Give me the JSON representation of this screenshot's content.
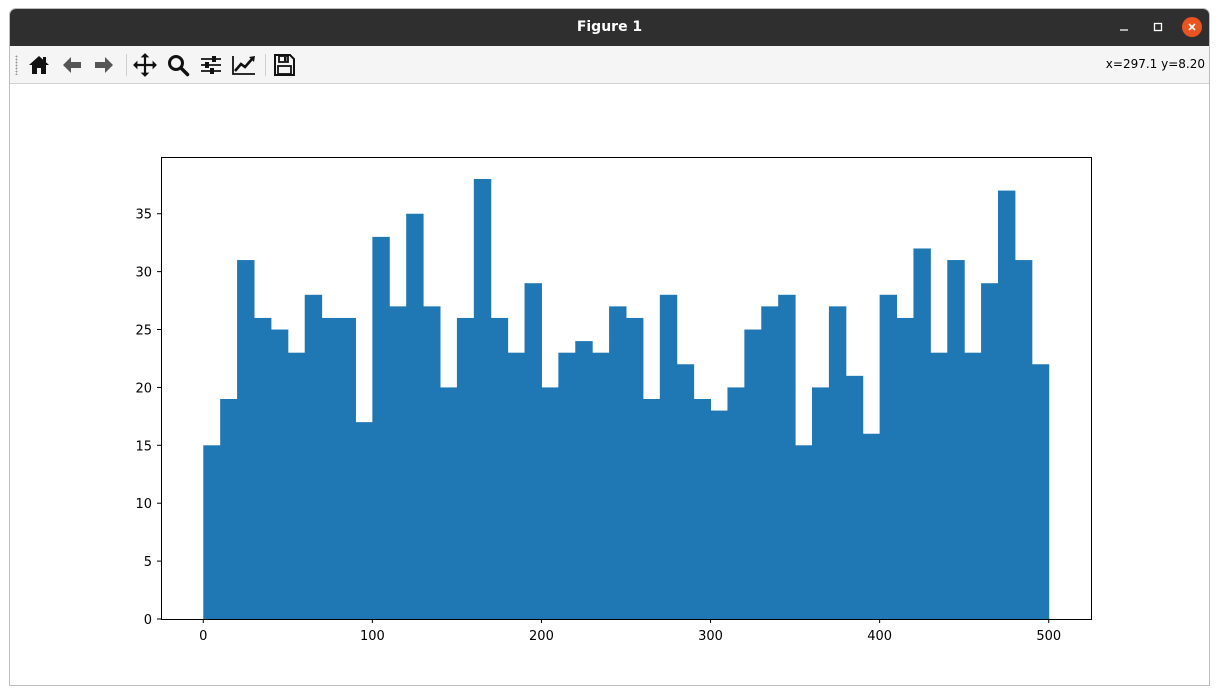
{
  "window": {
    "title": "Figure 1"
  },
  "toolbar": {
    "tools": [
      {
        "name": "home-icon",
        "tooltip": ""
      },
      {
        "name": "back-arrow-icon",
        "tooltip": ""
      },
      {
        "name": "forward-arrow-icon",
        "tooltip": ""
      },
      {
        "name": "pan-icon",
        "tooltip": ""
      },
      {
        "name": "zoom-icon",
        "tooltip": ""
      },
      {
        "name": "subplots-config-icon",
        "tooltip": ""
      },
      {
        "name": "edit-axis-icon",
        "tooltip": ""
      },
      {
        "name": "save-icon",
        "tooltip": ""
      }
    ],
    "coords": "x=297.1 y=8.20"
  },
  "colors": {
    "bar": "#1f77b4",
    "titlebar": "#2f2f2f",
    "close": "#e95420"
  },
  "chart_data": {
    "type": "bar",
    "title": "",
    "xlabel": "",
    "ylabel": "",
    "bin_start": 0,
    "bin_width": 10,
    "values": [
      15,
      19,
      31,
      26,
      25,
      23,
      28,
      26,
      26,
      17,
      33,
      27,
      35,
      27,
      20,
      26,
      38,
      26,
      23,
      29,
      20,
      23,
      24,
      23,
      27,
      26,
      19,
      28,
      22,
      19,
      18,
      20,
      25,
      27,
      28,
      15,
      20,
      27,
      21,
      16,
      28,
      26,
      32,
      23,
      31,
      23,
      29,
      37,
      31,
      22
    ],
    "xlim": [
      -25,
      525
    ],
    "ylim": [
      0,
      39.9
    ],
    "xticks": [
      0,
      100,
      200,
      300,
      400,
      500
    ],
    "yticks": [
      0,
      5,
      10,
      15,
      20,
      25,
      30,
      35
    ],
    "grid": false,
    "legend": "none"
  }
}
